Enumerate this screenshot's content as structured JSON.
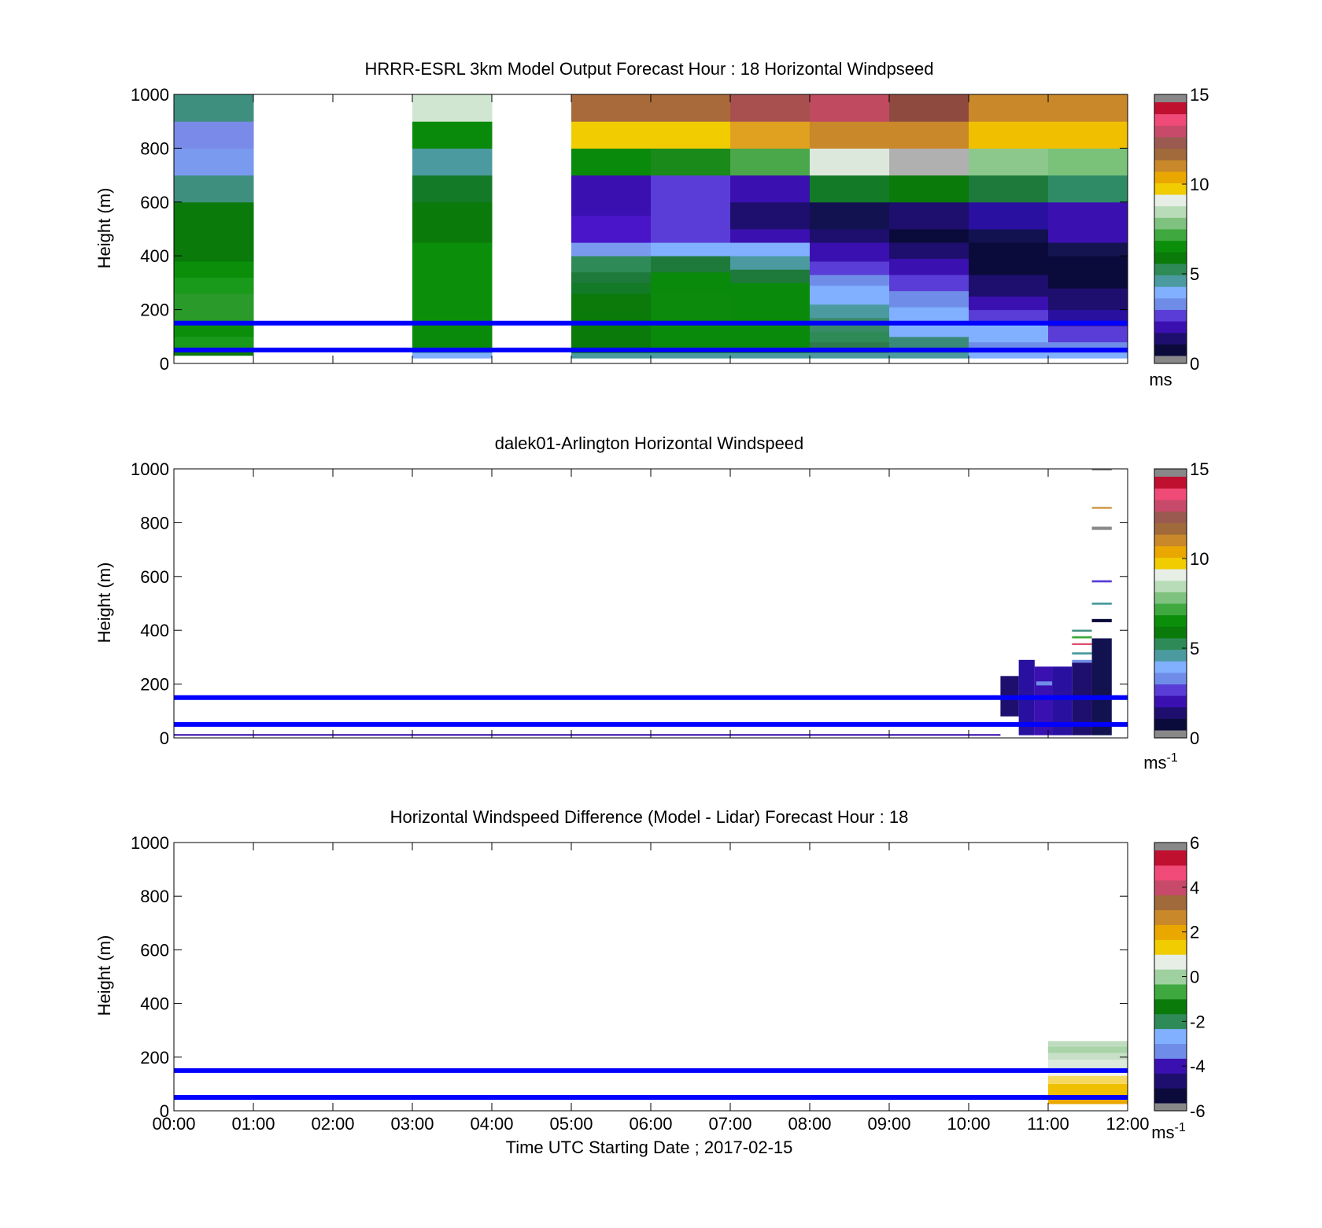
{
  "colormaps": {
    "speed": [
      "#0b0b3b",
      "#1e0f6e",
      "#3b10b0",
      "#5a3dd6",
      "#6f8de8",
      "#80b0ff",
      "#4a9aa0",
      "#2e8b57",
      "#0a7a0a",
      "#0b8f0b",
      "#3fa83f",
      "#7fc27f",
      "#b8dcb8",
      "#e6eee6",
      "#f0cc00",
      "#eaa700",
      "#c9882a",
      "#a06a3a",
      "#9a5a50",
      "#c84a6a",
      "#f04a78",
      "#c01030"
    ],
    "diff": [
      "#0b0b3b",
      "#1e0f6e",
      "#3b10b0",
      "#6f8de8",
      "#80b0ff",
      "#2e8b57",
      "#0a7a0a",
      "#3fa83f",
      "#9fd09f",
      "#e6eee6",
      "#f0cc00",
      "#eaa700",
      "#c9882a",
      "#a06a3a",
      "#c84a6a",
      "#f04a78",
      "#c01030"
    ],
    "out_of_range": "#888888",
    "reference_line": "#0000ff"
  },
  "figure": {
    "xlabel": "Time UTC  Starting Date ; 2017-02-15",
    "xticks": [
      "00:00",
      "01:00",
      "02:00",
      "03:00",
      "04:00",
      "05:00",
      "06:00",
      "07:00",
      "08:00",
      "09:00",
      "10:00",
      "11:00",
      "12:00"
    ]
  },
  "chart_data": [
    {
      "type": "heatmap",
      "title": "HRRR-ESRL 3km Model Output   Forecast Hour : 18 Horizontal Windpseed",
      "xlabel": "",
      "ylabel": "Height (m)",
      "xlim_hours": [
        0,
        12
      ],
      "ylim": [
        0,
        1000
      ],
      "yticks": [
        "0",
        "200",
        "400",
        "600",
        "800",
        "1000"
      ],
      "colorbar": {
        "range": [
          0,
          15
        ],
        "ticks": [
          "0",
          "5",
          "10",
          "15"
        ],
        "unit_label": "ms",
        "unit_sup": ""
      },
      "reference_lines_m": [
        50,
        150
      ],
      "cells": [
        {
          "t": 0,
          "levels": [
            [
              30,
              45,
              "#0a7a0a"
            ],
            [
              45,
              60,
              "#0b8f0b"
            ],
            [
              60,
              100,
              "#1a9a1a"
            ],
            [
              100,
              150,
              "#0b8f0b"
            ],
            [
              150,
              200,
              "#2a9a2a"
            ],
            [
              200,
              260,
              "#2a9a2a"
            ],
            [
              260,
              320,
              "#1a9a1a"
            ],
            [
              320,
              380,
              "#0b8f0b"
            ],
            [
              380,
              450,
              "#0a7a0a"
            ],
            [
              450,
              600,
              "#0a7a0a"
            ],
            [
              600,
              700,
              "#3f8f7f"
            ],
            [
              700,
              800,
              "#7a9af0"
            ],
            [
              800,
              900,
              "#7a8ae8"
            ],
            [
              900,
              1000,
              "#3f8f7f"
            ]
          ]
        },
        {
          "t": 3,
          "levels": [
            [
              20,
              40,
              "#80b0ff"
            ],
            [
              40,
              60,
              "#4a9aa0"
            ],
            [
              60,
              150,
              "#0a8a0a"
            ],
            [
              150,
              300,
              "#0b8f0b"
            ],
            [
              300,
              450,
              "#0b8f0b"
            ],
            [
              450,
              600,
              "#0a7a0a"
            ],
            [
              600,
              700,
              "#137a28"
            ],
            [
              700,
              800,
              "#4a9aa0"
            ],
            [
              800,
              900,
              "#0a8a0a"
            ],
            [
              900,
              1000,
              "#d0e6d0"
            ]
          ]
        },
        {
          "t": 5,
          "levels": [
            [
              20,
              40,
              "#4a9aa0"
            ],
            [
              40,
              80,
              "#0a7a0a"
            ],
            [
              80,
              200,
              "#0a7a0a"
            ],
            [
              200,
              260,
              "#0b7a0b"
            ],
            [
              260,
              300,
              "#137a28"
            ],
            [
              300,
              340,
              "#1e7a3a"
            ],
            [
              340,
              400,
              "#2e8b57"
            ],
            [
              400,
              450,
              "#7a9af0"
            ],
            [
              450,
              550,
              "#4a14c8"
            ],
            [
              550,
              700,
              "#3b10b0"
            ],
            [
              700,
              800,
              "#0a8a0a"
            ],
            [
              800,
              900,
              "#f0cc00"
            ],
            [
              900,
              1000,
              "#a86a3a"
            ]
          ]
        },
        {
          "t": 6,
          "levels": [
            [
              20,
              40,
              "#4a9aa0"
            ],
            [
              40,
              150,
              "#0a8a0a"
            ],
            [
              150,
              260,
              "#0b8a0b"
            ],
            [
              260,
              340,
              "#0a8a0a"
            ],
            [
              340,
              400,
              "#1e7a3a"
            ],
            [
              400,
              450,
              "#80b0ff"
            ],
            [
              450,
              550,
              "#5a3dd6"
            ],
            [
              550,
              700,
              "#5a3dd6"
            ],
            [
              700,
              800,
              "#1a8a1a"
            ],
            [
              800,
              900,
              "#f0cc00"
            ],
            [
              900,
              1000,
              "#a86a3a"
            ]
          ]
        },
        {
          "t": 7,
          "levels": [
            [
              20,
              40,
              "#4a9aa0"
            ],
            [
              40,
              150,
              "#0a8a0a"
            ],
            [
              150,
              300,
              "#0a8a0a"
            ],
            [
              300,
              350,
              "#1e7a3a"
            ],
            [
              350,
              400,
              "#4a9aa0"
            ],
            [
              400,
              450,
              "#80b0ff"
            ],
            [
              450,
              500,
              "#3b10b0"
            ],
            [
              500,
              600,
              "#1e0f6e"
            ],
            [
              600,
              700,
              "#3b10b0"
            ],
            [
              700,
              800,
              "#4aa84a"
            ],
            [
              800,
              900,
              "#e0a020"
            ],
            [
              900,
              1000,
              "#a85050"
            ]
          ]
        },
        {
          "t": 8,
          "levels": [
            [
              20,
              40,
              "#4a9aa0"
            ],
            [
              40,
              80,
              "#2e7a4a"
            ],
            [
              80,
              120,
              "#2e8b57"
            ],
            [
              120,
              170,
              "#3a8a6a"
            ],
            [
              170,
              220,
              "#4a9aa0"
            ],
            [
              220,
              290,
              "#80b0ff"
            ],
            [
              290,
              330,
              "#6f8de8"
            ],
            [
              330,
              380,
              "#5a3dd6"
            ],
            [
              380,
              450,
              "#3b10b0"
            ],
            [
              450,
              500,
              "#1e0f6e"
            ],
            [
              500,
              600,
              "#121250"
            ],
            [
              600,
              700,
              "#137a28"
            ],
            [
              700,
              800,
              "#dde8dd"
            ],
            [
              800,
              900,
              "#c9882a"
            ],
            [
              900,
              1000,
              "#c04a60"
            ]
          ]
        },
        {
          "t": 9,
          "levels": [
            [
              20,
              40,
              "#4a9aa0"
            ],
            [
              40,
              100,
              "#3a8a7a"
            ],
            [
              100,
              170,
              "#80b0ff"
            ],
            [
              170,
              210,
              "#80b0ff"
            ],
            [
              210,
              270,
              "#6f8de8"
            ],
            [
              270,
              330,
              "#5a3dd6"
            ],
            [
              330,
              390,
              "#3b10b0"
            ],
            [
              390,
              450,
              "#1e0f6e"
            ],
            [
              450,
              500,
              "#0b0b3b"
            ],
            [
              500,
              600,
              "#1e0f6e"
            ],
            [
              600,
              700,
              "#0a7a0a"
            ],
            [
              700,
              800,
              "#b0b0b0"
            ],
            [
              800,
              900,
              "#c9882a"
            ],
            [
              900,
              1000,
              "#8f4a40"
            ]
          ]
        },
        {
          "t": 10,
          "levels": [
            [
              20,
              40,
              "#80b0ff"
            ],
            [
              40,
              80,
              "#6f8de8"
            ],
            [
              80,
              150,
              "#80b0ff"
            ],
            [
              150,
              200,
              "#5a3dd6"
            ],
            [
              200,
              250,
              "#3b10b0"
            ],
            [
              250,
              330,
              "#1e0f6e"
            ],
            [
              330,
              450,
              "#0b0b3b"
            ],
            [
              450,
              500,
              "#121250"
            ],
            [
              500,
              600,
              "#2a10a0"
            ],
            [
              600,
              700,
              "#1e7a3a"
            ],
            [
              700,
              800,
              "#8cc88c"
            ],
            [
              800,
              900,
              "#f0c000"
            ],
            [
              900,
              1000,
              "#c9882a"
            ]
          ]
        },
        {
          "t": 11,
          "levels": [
            [
              20,
              40,
              "#80b0ff"
            ],
            [
              40,
              80,
              "#6f8de8"
            ],
            [
              80,
              140,
              "#5a3dd6"
            ],
            [
              140,
              200,
              "#2a10a0"
            ],
            [
              200,
              280,
              "#1e0f6e"
            ],
            [
              280,
              400,
              "#0b0b3b"
            ],
            [
              400,
              450,
              "#141450"
            ],
            [
              450,
              600,
              "#3b10b0"
            ],
            [
              600,
              700,
              "#2e8b66"
            ],
            [
              700,
              800,
              "#7ac27a"
            ],
            [
              800,
              900,
              "#f0c000"
            ],
            [
              900,
              1000,
              "#c9882a"
            ]
          ]
        }
      ]
    },
    {
      "type": "heatmap",
      "title": "dalek01-Arlington  Horizontal Windspeed",
      "xlabel": "",
      "ylabel": "Height (m)",
      "xlim_hours": [
        0,
        12
      ],
      "ylim": [
        0,
        1000
      ],
      "yticks": [
        "0",
        "200",
        "400",
        "600",
        "800",
        "1000"
      ],
      "colorbar": {
        "range": [
          0,
          15
        ],
        "ticks": [
          "0",
          "5",
          "10",
          "15"
        ],
        "unit_label": "ms",
        "unit_sup": "-1"
      },
      "reference_lines_m": [
        50,
        150
      ],
      "strips": [
        {
          "t0": 0,
          "t1": 10.4,
          "y0": 8,
          "y1": 14,
          "color": "#3b10b0"
        },
        {
          "t0": 10.4,
          "t1": 10.63,
          "y0": 80,
          "y1": 230,
          "color": "#1e0f6e"
        },
        {
          "t0": 10.63,
          "t1": 10.83,
          "y0": 10,
          "y1": 290,
          "color": "#2a10a0"
        },
        {
          "t0": 10.83,
          "t1": 11.05,
          "y0": 10,
          "y1": 265,
          "color": "#3b10b0"
        },
        {
          "t0": 11.05,
          "t1": 11.3,
          "y0": 10,
          "y1": 265,
          "color": "#2a10a0"
        },
        {
          "t0": 11.3,
          "t1": 11.55,
          "y0": 10,
          "y1": 280,
          "color": "#1e0f6e"
        },
        {
          "t0": 11.55,
          "t1": 11.8,
          "y0": 10,
          "y1": 370,
          "color": "#121250"
        },
        {
          "t0": 10.85,
          "t1": 11.05,
          "y0": 195,
          "y1": 210,
          "color": "#6f8de8"
        },
        {
          "t0": 11.3,
          "t1": 11.55,
          "y0": 280,
          "y1": 290,
          "color": "#6f8de8"
        },
        {
          "t0": 11.3,
          "t1": 11.55,
          "y0": 310,
          "y1": 318,
          "color": "#4a9aa0"
        },
        {
          "t0": 11.3,
          "t1": 11.55,
          "y0": 345,
          "y1": 352,
          "color": "#e05070"
        },
        {
          "t0": 11.3,
          "t1": 11.55,
          "y0": 370,
          "y1": 378,
          "color": "#3fa83f"
        },
        {
          "t0": 11.3,
          "t1": 11.55,
          "y0": 395,
          "y1": 402,
          "color": "#3f8f7f"
        },
        {
          "t0": 11.55,
          "t1": 11.8,
          "y0": 430,
          "y1": 442,
          "color": "#0b0b3b"
        },
        {
          "t0": 11.55,
          "t1": 11.8,
          "y0": 495,
          "y1": 503,
          "color": "#4a9aa0"
        },
        {
          "t0": 11.55,
          "t1": 11.8,
          "y0": 578,
          "y1": 586,
          "color": "#5a3dd6"
        },
        {
          "t0": 11.55,
          "t1": 11.8,
          "y0": 773,
          "y1": 785,
          "color": "#888888"
        },
        {
          "t0": 11.55,
          "t1": 11.8,
          "y0": 852,
          "y1": 858,
          "color": "#c9882a"
        },
        {
          "t0": 11.55,
          "t1": 11.8,
          "y0": 994,
          "y1": 1000,
          "color": "#888888"
        }
      ]
    },
    {
      "type": "heatmap",
      "title": "Horizontal Windspeed Difference (Model - Lidar) Forecast Hour : 18",
      "xlabel": "Time UTC  Starting Date ; 2017-02-15",
      "ylabel": "Height (m)",
      "xlim_hours": [
        0,
        12
      ],
      "ylim": [
        0,
        1000
      ],
      "yticks": [
        "0",
        "200",
        "400",
        "600",
        "800",
        "1000"
      ],
      "colorbar": {
        "range": [
          -6,
          6
        ],
        "ticks": [
          "-6",
          "-4",
          "-2",
          "0",
          "2",
          "4",
          "6"
        ],
        "unit_label": "ms",
        "unit_sup": "-1"
      },
      "reference_lines_m": [
        50,
        150
      ],
      "strips": [
        {
          "t0": 11,
          "t1": 12,
          "y0": 25,
          "y1": 60,
          "color": "#eaa700"
        },
        {
          "t0": 11,
          "t1": 12,
          "y0": 60,
          "y1": 100,
          "color": "#f0c000"
        },
        {
          "t0": 11,
          "t1": 12,
          "y0": 100,
          "y1": 130,
          "color": "#f5d860"
        },
        {
          "t0": 11,
          "t1": 12,
          "y0": 130,
          "y1": 160,
          "color": "#f2f2ee"
        },
        {
          "t0": 11,
          "t1": 12,
          "y0": 160,
          "y1": 190,
          "color": "#dceadc"
        },
        {
          "t0": 11,
          "t1": 12,
          "y0": 190,
          "y1": 215,
          "color": "#c8e0c8"
        },
        {
          "t0": 11,
          "t1": 12,
          "y0": 215,
          "y1": 240,
          "color": "#a8d4a8"
        },
        {
          "t0": 11,
          "t1": 12,
          "y0": 240,
          "y1": 260,
          "color": "#c0dcc0"
        }
      ]
    }
  ]
}
